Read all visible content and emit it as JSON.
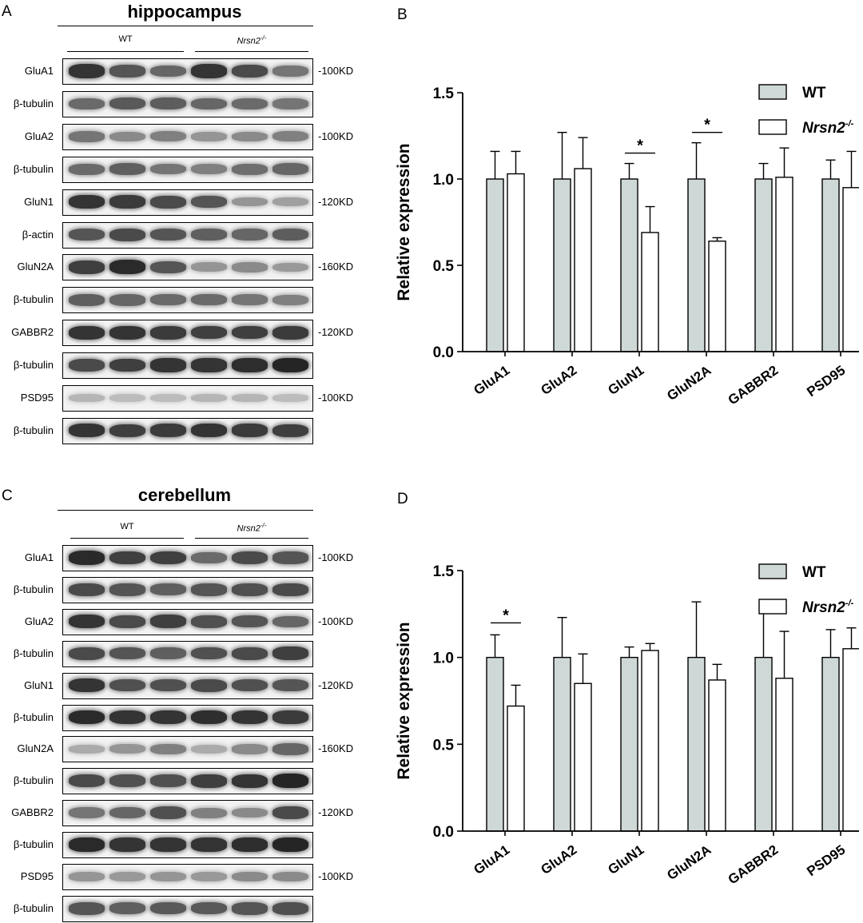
{
  "panels": {
    "A": {
      "letter": "A",
      "title": "hippocampus",
      "group_wt": "WT",
      "group_ko": "Nrsn2",
      "blots": [
        {
          "label": "GluA1",
          "mw": "-100KD",
          "intensity": [
            0.85,
            0.7,
            0.62,
            0.85,
            0.75,
            0.55
          ]
        },
        {
          "label": "β-tubulin",
          "mw": "",
          "intensity": [
            0.6,
            0.68,
            0.66,
            0.62,
            0.6,
            0.55
          ]
        },
        {
          "label": "GluA2",
          "mw": "-100KD",
          "intensity": [
            0.55,
            0.45,
            0.5,
            0.4,
            0.45,
            0.5
          ]
        },
        {
          "label": "β-tubulin",
          "mw": "",
          "intensity": [
            0.6,
            0.65,
            0.55,
            0.5,
            0.58,
            0.62
          ]
        },
        {
          "label": "GluN1",
          "mw": "-120KD",
          "intensity": [
            0.85,
            0.82,
            0.75,
            0.7,
            0.4,
            0.35
          ]
        },
        {
          "label": "β-actin",
          "mw": "",
          "intensity": [
            0.7,
            0.75,
            0.7,
            0.65,
            0.62,
            0.66
          ]
        },
        {
          "label": "GluN2A",
          "mw": "-160KD",
          "intensity": [
            0.8,
            0.9,
            0.7,
            0.4,
            0.45,
            0.38
          ]
        },
        {
          "label": "β-tubulin",
          "mw": "",
          "intensity": [
            0.65,
            0.62,
            0.6,
            0.6,
            0.55,
            0.5
          ]
        },
        {
          "label": "GABBR2",
          "mw": "-120KD",
          "intensity": [
            0.85,
            0.85,
            0.82,
            0.8,
            0.8,
            0.82
          ]
        },
        {
          "label": "β-tubulin",
          "mw": "",
          "intensity": [
            0.75,
            0.8,
            0.85,
            0.85,
            0.88,
            0.92
          ]
        },
        {
          "label": "PSD95",
          "mw": "-100KD",
          "intensity": [
            0.25,
            0.22,
            0.22,
            0.25,
            0.25,
            0.22
          ]
        },
        {
          "label": "β-tubulin",
          "mw": "",
          "intensity": [
            0.85,
            0.8,
            0.82,
            0.85,
            0.82,
            0.8
          ]
        }
      ]
    },
    "C": {
      "letter": "C",
      "title": "cerebellum",
      "group_wt": "WT",
      "group_ko": "Nrsn2",
      "blots": [
        {
          "label": "GluA1",
          "mw": "-100KD",
          "intensity": [
            0.9,
            0.8,
            0.8,
            0.6,
            0.75,
            0.7
          ]
        },
        {
          "label": "β-tubulin",
          "mw": "",
          "intensity": [
            0.75,
            0.7,
            0.65,
            0.7,
            0.72,
            0.75
          ]
        },
        {
          "label": "GluA2",
          "mw": "-100KD",
          "intensity": [
            0.85,
            0.75,
            0.8,
            0.72,
            0.7,
            0.62
          ]
        },
        {
          "label": "β-tubulin",
          "mw": "",
          "intensity": [
            0.75,
            0.7,
            0.65,
            0.72,
            0.75,
            0.8
          ]
        },
        {
          "label": "GluN1",
          "mw": "-120KD",
          "intensity": [
            0.85,
            0.72,
            0.72,
            0.75,
            0.72,
            0.7
          ]
        },
        {
          "label": "β-tubulin",
          "mw": "",
          "intensity": [
            0.9,
            0.85,
            0.85,
            0.88,
            0.85,
            0.82
          ]
        },
        {
          "label": "GluN2A",
          "mw": "-160KD",
          "intensity": [
            0.3,
            0.4,
            0.5,
            0.3,
            0.45,
            0.62
          ]
        },
        {
          "label": "β-tubulin",
          "mw": "",
          "intensity": [
            0.75,
            0.72,
            0.72,
            0.8,
            0.85,
            0.92
          ]
        },
        {
          "label": "GABBR2",
          "mw": "-120KD",
          "intensity": [
            0.55,
            0.62,
            0.72,
            0.5,
            0.45,
            0.75
          ]
        },
        {
          "label": "β-tubulin",
          "mw": "",
          "intensity": [
            0.9,
            0.85,
            0.85,
            0.85,
            0.88,
            0.92
          ]
        },
        {
          "label": "PSD95",
          "mw": "-100KD",
          "intensity": [
            0.4,
            0.38,
            0.4,
            0.38,
            0.45,
            0.45
          ]
        },
        {
          "label": "β-tubulin",
          "mw": "",
          "intensity": [
            0.7,
            0.65,
            0.68,
            0.68,
            0.7,
            0.72
          ]
        }
      ]
    }
  },
  "colors": {
    "wt_bar": "#ced8d7",
    "ko_bar": "#ffffff",
    "band": "#1e1e1e"
  },
  "chart_data": [
    {
      "panel": "B",
      "type": "bar",
      "title": "",
      "xlabel": "",
      "ylabel": "Relative expression",
      "ylim": [
        0,
        1.5
      ],
      "yticks": [
        "0.0",
        "0.5",
        "1.0",
        "1.5"
      ],
      "categories": [
        "GluA1",
        "GluA2",
        "GluN1",
        "GluN2A",
        "GABBR2",
        "PSD95"
      ],
      "series": [
        {
          "name": "WT",
          "values": [
            1.0,
            1.0,
            1.0,
            1.0,
            1.0,
            1.0
          ],
          "errors": [
            0.16,
            0.27,
            0.09,
            0.21,
            0.09,
            0.11
          ]
        },
        {
          "name": "Nrsn2",
          "values": [
            1.03,
            1.06,
            0.69,
            0.64,
            1.01,
            0.95
          ],
          "errors": [
            0.13,
            0.18,
            0.15,
            0.02,
            0.17,
            0.21
          ]
        }
      ],
      "significance": [
        {
          "category": "GluN1",
          "label": "*"
        },
        {
          "category": "GluN2A",
          "label": "*"
        }
      ],
      "legend": "top-right",
      "superscript": "-/-"
    },
    {
      "panel": "D",
      "type": "bar",
      "title": "",
      "xlabel": "",
      "ylabel": "Relative expression",
      "ylim": [
        0,
        1.5
      ],
      "yticks": [
        "0.0",
        "0.5",
        "1.0",
        "1.5"
      ],
      "categories": [
        "GluA1",
        "GluA2",
        "GluN1",
        "GluN2A",
        "GABBR2",
        "PSD95"
      ],
      "series": [
        {
          "name": "WT",
          "values": [
            1.0,
            1.0,
            1.0,
            1.0,
            1.0,
            1.0
          ],
          "errors": [
            0.13,
            0.23,
            0.06,
            0.32,
            0.29,
            0.16
          ]
        },
        {
          "name": "Nrsn2",
          "values": [
            0.72,
            0.85,
            1.04,
            0.87,
            0.88,
            1.05
          ],
          "errors": [
            0.12,
            0.17,
            0.04,
            0.09,
            0.27,
            0.12
          ]
        }
      ],
      "significance": [
        {
          "category": "GluA1",
          "label": "*"
        }
      ],
      "legend": "top-right",
      "superscript": "-/-"
    }
  ],
  "chart_letters": {
    "B": "B",
    "D": "D"
  }
}
